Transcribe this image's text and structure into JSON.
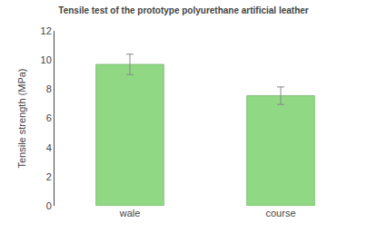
{
  "chart_data": {
    "type": "bar",
    "title": "Tensile test of the prototype polyurethane artificial leather",
    "ylabel": "Tensile strength (MPa)",
    "categories": [
      "wale",
      "course"
    ],
    "values": [
      9.7,
      7.55
    ],
    "errors": [
      0.7,
      0.6
    ],
    "color": "#90d884",
    "ylim": [
      0,
      12
    ],
    "yticks": [
      0,
      2,
      4,
      6,
      8,
      10,
      12
    ],
    "grid": false
  }
}
